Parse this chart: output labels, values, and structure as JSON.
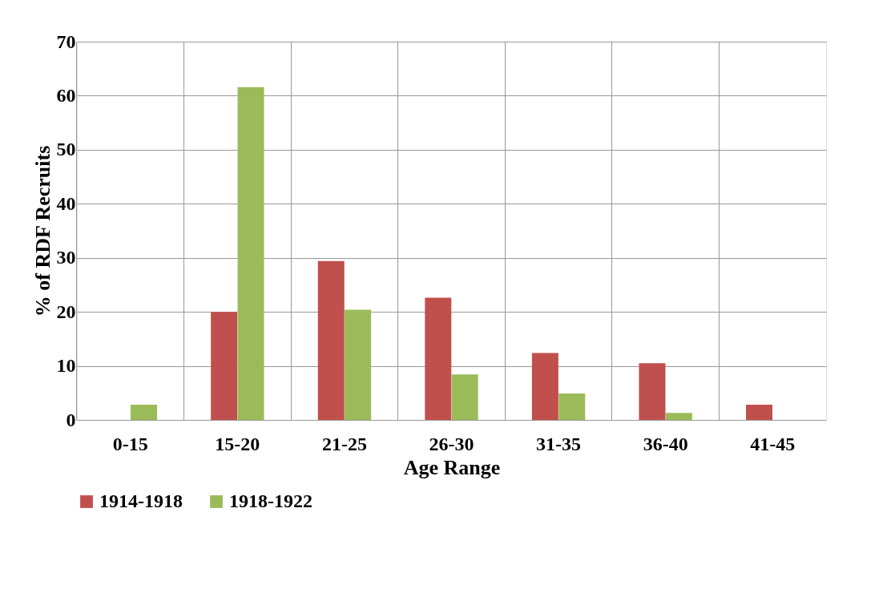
{
  "chart_data": {
    "type": "bar",
    "xlabel": "Age Range",
    "ylabel": "% of RDF Recruits",
    "categories": [
      "0-15",
      "15-20",
      "21-25",
      "26-30",
      "31-35",
      "36-40",
      "41-45"
    ],
    "series": [
      {
        "name": "1914-1918",
        "color": "#c0504d",
        "values": [
          0,
          20,
          29.4,
          22.6,
          12.4,
          10.5,
          2.8
        ]
      },
      {
        "name": "1918-1922",
        "color": "#9bbb59",
        "values": [
          2.8,
          61.6,
          20.4,
          8.4,
          4.9,
          1.3,
          0
        ]
      }
    ],
    "ylim": [
      0,
      70
    ],
    "yticks": [
      0,
      10,
      20,
      30,
      40,
      50,
      60,
      70
    ],
    "grid": true,
    "legend": "bottom"
  }
}
